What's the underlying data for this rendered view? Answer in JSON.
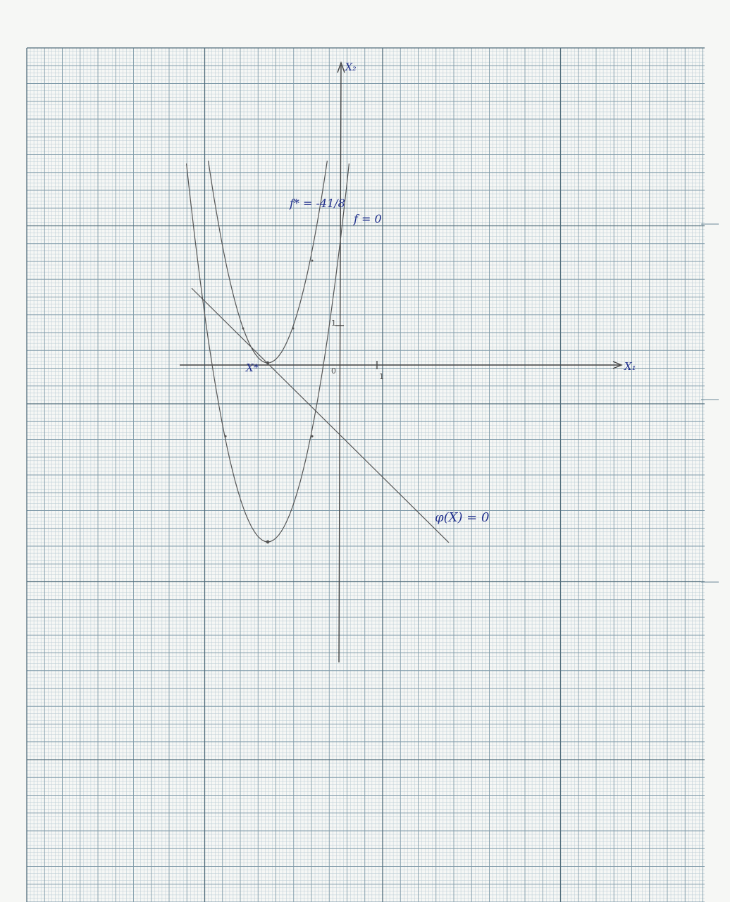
{
  "colors": {
    "paper": "#f6f7f5",
    "grid_minor": "#b9cbd4",
    "grid_mid": "#7f9aa9",
    "grid_major": "#4f6b7a",
    "ink_pencil": "#555555",
    "ink_blue": "#1f2f8c"
  },
  "diagram": {
    "axes": {
      "x_label": "X₁",
      "y_label": "X₂",
      "origin_label": "0",
      "x_tick_label": "1",
      "y_tick_label": "1"
    },
    "curves": {
      "level_optimal_label": "f* = -41/8",
      "level_zero_label": "f = 0",
      "constraint_label": "φ(X) = 0",
      "optimum_point_label": "X*"
    }
  }
}
